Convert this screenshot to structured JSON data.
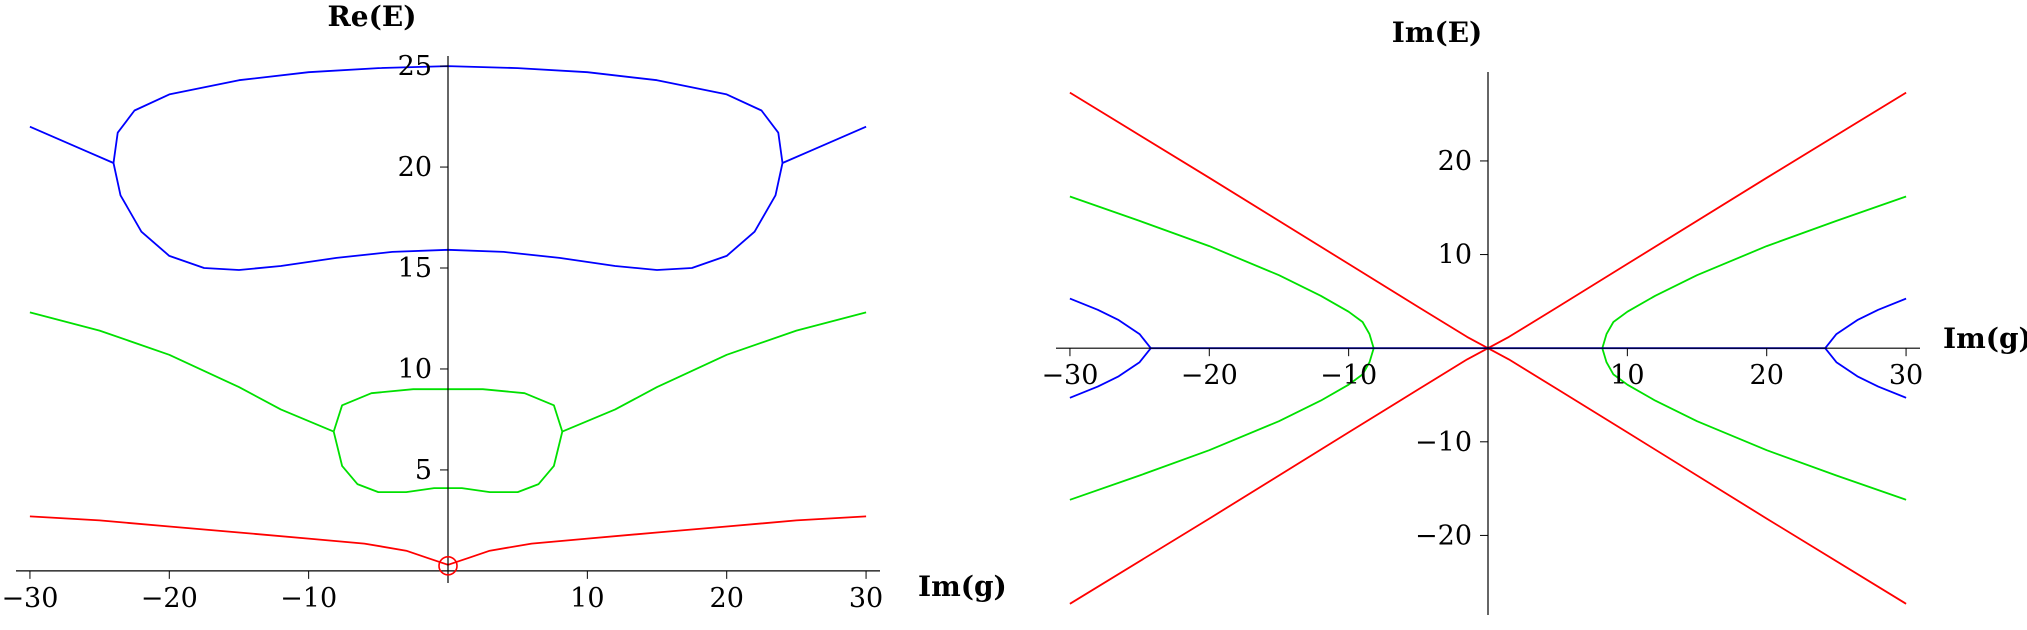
{
  "chart_data": [
    {
      "type": "line",
      "title": "",
      "xlabel": "Im(g)",
      "ylabel": "Re(E)",
      "xlim": [
        -31,
        31
      ],
      "ylim": [
        -0.6,
        25.5
      ],
      "grid": false,
      "legend": "none",
      "x_ticks": [
        -30,
        -20,
        -10,
        10,
        20,
        30
      ],
      "y_ticks": [
        5,
        10,
        15,
        20,
        25
      ],
      "series": [
        {
          "color": "#0000ff",
          "segments": [
            [
              [
                -30,
                22.0
              ],
              [
                -28,
                21.4
              ],
              [
                -26,
                20.8
              ],
              [
                -24,
                20.2
              ]
            ],
            [
              [
                24,
                20.2
              ],
              [
                26,
                20.8
              ],
              [
                28,
                21.4
              ],
              [
                30,
                22.0
              ]
            ],
            [
              [
                -24,
                20.2
              ],
              [
                -23.7,
                21.7
              ],
              [
                -22.5,
                22.8
              ],
              [
                -20,
                23.6
              ],
              [
                -15,
                24.3
              ],
              [
                -10,
                24.7
              ],
              [
                -5,
                24.9
              ],
              [
                0,
                25.0
              ],
              [
                5,
                24.9
              ],
              [
                10,
                24.7
              ],
              [
                15,
                24.3
              ],
              [
                20,
                23.6
              ],
              [
                22.5,
                22.8
              ],
              [
                23.7,
                21.7
              ],
              [
                24,
                20.2
              ],
              [
                23.5,
                18.6
              ],
              [
                22,
                16.8
              ],
              [
                20,
                15.6
              ],
              [
                17.5,
                15.0
              ],
              [
                15,
                14.9
              ],
              [
                12,
                15.1
              ],
              [
                8,
                15.5
              ],
              [
                4,
                15.8
              ],
              [
                0,
                15.9
              ],
              [
                -4,
                15.8
              ],
              [
                -8,
                15.5
              ],
              [
                -12,
                15.1
              ],
              [
                -15,
                14.9
              ],
              [
                -17.5,
                15.0
              ],
              [
                -20,
                15.6
              ],
              [
                -22,
                16.8
              ],
              [
                -23.5,
                18.6
              ],
              [
                -24,
                20.2
              ]
            ]
          ]
        },
        {
          "color": "#00e000",
          "segments": [
            [
              [
                -30,
                12.8
              ],
              [
                -25,
                11.9
              ],
              [
                -20,
                10.7
              ],
              [
                -15,
                9.1
              ],
              [
                -12,
                8.0
              ],
              [
                -8.2,
                6.9
              ]
            ],
            [
              [
                8.2,
                6.9
              ],
              [
                12,
                8.0
              ],
              [
                15,
                9.1
              ],
              [
                20,
                10.7
              ],
              [
                25,
                11.9
              ],
              [
                30,
                12.8
              ]
            ],
            [
              [
                -8.2,
                6.9
              ],
              [
                -7.6,
                8.2
              ],
              [
                -5.5,
                8.8
              ],
              [
                -2.5,
                9.0
              ],
              [
                0,
                9.0
              ],
              [
                2.5,
                9.0
              ],
              [
                5.5,
                8.8
              ],
              [
                7.6,
                8.2
              ],
              [
                8.2,
                6.9
              ],
              [
                7.6,
                5.2
              ],
              [
                6.5,
                4.3
              ],
              [
                5,
                3.9
              ],
              [
                3,
                3.9
              ],
              [
                1,
                4.1
              ],
              [
                0,
                4.1
              ],
              [
                -1,
                4.1
              ],
              [
                -3,
                3.9
              ],
              [
                -5,
                3.9
              ],
              [
                -6.5,
                4.3
              ],
              [
                -7.6,
                5.2
              ],
              [
                -8.2,
                6.9
              ]
            ]
          ]
        },
        {
          "color": "#ff0000",
          "segments": [
            [
              [
                -30,
                2.7
              ],
              [
                -25,
                2.5
              ],
              [
                -20,
                2.2
              ],
              [
                -15,
                1.9
              ],
              [
                -10,
                1.6
              ],
              [
                -6,
                1.35
              ],
              [
                -3,
                1.0
              ],
              [
                -1.5,
                0.65
              ],
              [
                0,
                0.3
              ]
            ],
            [
              [
                0,
                0.3
              ],
              [
                1.5,
                0.65
              ],
              [
                3,
                1.0
              ],
              [
                6,
                1.35
              ],
              [
                10,
                1.6
              ],
              [
                15,
                1.9
              ],
              [
                20,
                2.2
              ],
              [
                25,
                2.5
              ],
              [
                30,
                2.7
              ]
            ]
          ]
        }
      ],
      "markers": [
        {
          "type": "open-circle",
          "color": "#ff0000",
          "x": 0,
          "y": 0.25
        }
      ]
    },
    {
      "type": "line",
      "title": "",
      "xlabel": "Im(g)",
      "ylabel": "Im(E)",
      "xlim": [
        -31,
        31
      ],
      "ylim": [
        -28.5,
        29.5
      ],
      "grid": false,
      "legend": "none",
      "x_ticks": [
        -30,
        -20,
        -10,
        10,
        20,
        30
      ],
      "y_ticks": [
        -20,
        -10,
        10,
        20
      ],
      "series": [
        {
          "color": "#ff0000",
          "segments": [
            [
              [
                -30,
                27.3
              ],
              [
                -20,
                18.2
              ],
              [
                -10,
                9.0
              ],
              [
                -5,
                4.4
              ],
              [
                -1.5,
                1.2
              ],
              [
                0,
                0
              ],
              [
                1.5,
                1.2
              ],
              [
                5,
                4.4
              ],
              [
                10,
                9.0
              ],
              [
                20,
                18.2
              ],
              [
                30,
                27.3
              ]
            ],
            [
              [
                -30,
                -27.3
              ],
              [
                -20,
                -18.2
              ],
              [
                -10,
                -9.0
              ],
              [
                -5,
                -4.4
              ],
              [
                -1.5,
                -1.2
              ],
              [
                0,
                0
              ],
              [
                1.5,
                -1.2
              ],
              [
                5,
                -4.4
              ],
              [
                10,
                -9.0
              ],
              [
                20,
                -18.2
              ],
              [
                30,
                -27.3
              ]
            ]
          ]
        },
        {
          "color": "#00e000",
          "segments": [
            [
              [
                -30,
                16.2
              ],
              [
                -25,
                13.6
              ],
              [
                -20,
                10.9
              ],
              [
                -15,
                7.8
              ],
              [
                -12,
                5.6
              ],
              [
                -10,
                3.9
              ],
              [
                -9,
                2.8
              ],
              [
                -8.5,
                1.5
              ],
              [
                -8.2,
                0
              ],
              [
                -8.5,
                -1.5
              ],
              [
                -9,
                -2.8
              ],
              [
                -10,
                -3.9
              ],
              [
                -12,
                -5.6
              ],
              [
                -15,
                -7.8
              ],
              [
                -20,
                -10.9
              ],
              [
                -25,
                -13.6
              ],
              [
                -30,
                -16.2
              ]
            ],
            [
              [
                30,
                16.2
              ],
              [
                25,
                13.6
              ],
              [
                20,
                10.9
              ],
              [
                15,
                7.8
              ],
              [
                12,
                5.6
              ],
              [
                10,
                3.9
              ],
              [
                9,
                2.8
              ],
              [
                8.5,
                1.5
              ],
              [
                8.2,
                0
              ],
              [
                8.5,
                -1.5
              ],
              [
                9,
                -2.8
              ],
              [
                10,
                -3.9
              ],
              [
                12,
                -5.6
              ],
              [
                15,
                -7.8
              ],
              [
                20,
                -10.9
              ],
              [
                25,
                -13.6
              ],
              [
                30,
                -16.2
              ]
            ]
          ]
        },
        {
          "color": "#0000ff",
          "segments": [
            [
              [
                -30,
                5.3
              ],
              [
                -28,
                4.1
              ],
              [
                -26.5,
                3.0
              ],
              [
                -25,
                1.5
              ],
              [
                -24.2,
                0
              ],
              [
                -25,
                -1.5
              ],
              [
                -26.5,
                -3.0
              ],
              [
                -28,
                -4.1
              ],
              [
                -30,
                -5.3
              ]
            ],
            [
              [
                30,
                5.3
              ],
              [
                28,
                4.1
              ],
              [
                26.5,
                3.0
              ],
              [
                25,
                1.5
              ],
              [
                24.2,
                0
              ],
              [
                25,
                -1.5
              ],
              [
                26.5,
                -3.0
              ],
              [
                28,
                -4.1
              ],
              [
                30,
                -5.3
              ]
            ],
            [
              [
                -24.2,
                0
              ],
              [
                24.2,
                0
              ]
            ]
          ]
        }
      ],
      "markers": []
    }
  ]
}
